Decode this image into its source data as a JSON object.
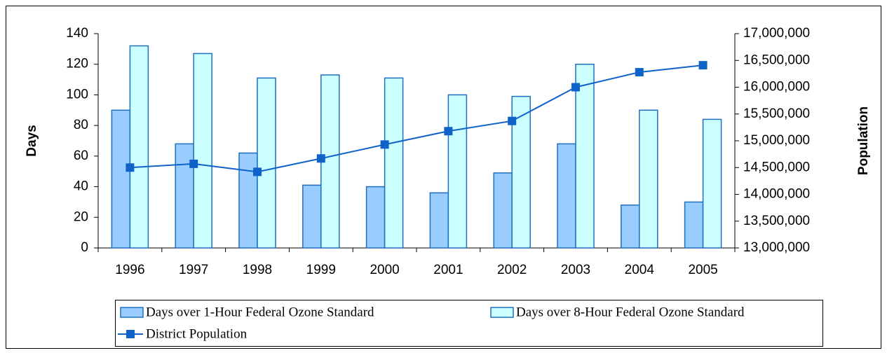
{
  "chart_data": {
    "type": "bar_line",
    "categories": [
      "1996",
      "1997",
      "1998",
      "1999",
      "2000",
      "2001",
      "2002",
      "2003",
      "2004",
      "2005"
    ],
    "series": [
      {
        "name": "Days over 1-Hour Federal Ozone Standard",
        "color": "#99ccff",
        "values": [
          90,
          68,
          62,
          41,
          40,
          36,
          49,
          68,
          28,
          30
        ]
      },
      {
        "name": "Days over 8-Hour Federal Ozone Standard",
        "color": "#ccffff",
        "values": [
          132,
          127,
          111,
          113,
          111,
          100,
          99,
          120,
          90,
          84
        ]
      },
      {
        "name": "District Population",
        "color": "#0f62c8",
        "axis": "y2",
        "values": [
          14500000,
          14570000,
          14420000,
          14670000,
          14930000,
          15180000,
          15370000,
          16000000,
          16280000,
          16410000
        ]
      }
    ],
    "ylabel": "Days",
    "y2label": "Population",
    "ylim": [
      0,
      140
    ],
    "yticks": [
      0,
      20,
      40,
      60,
      80,
      100,
      120,
      140
    ],
    "y2lim": [
      13000000,
      17000000
    ],
    "y2ticks": [
      {
        "value": 13000000,
        "label": "13,000,000"
      },
      {
        "value": 13500000,
        "label": "13,500,000"
      },
      {
        "value": 14000000,
        "label": "14,000,000"
      },
      {
        "value": 14500000,
        "label": "14,500,000"
      },
      {
        "value": 15000000,
        "label": "15,000,000"
      },
      {
        "value": 15500000,
        "label": "15,500,000"
      },
      {
        "value": 16000000,
        "label": "16,000,000"
      },
      {
        "value": 16500000,
        "label": "16,500,000"
      },
      {
        "value": 17000000,
        "label": "17,000,000"
      }
    ],
    "legend": "bottom",
    "grid": false
  }
}
